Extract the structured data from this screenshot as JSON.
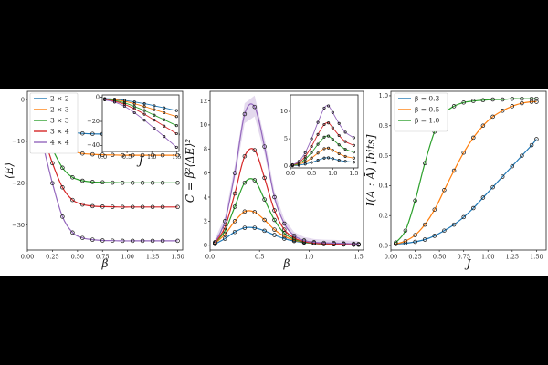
{
  "colors": {
    "blue": "#1f77b4",
    "orange": "#ff7f0e",
    "green": "#2ca02c",
    "red": "#d62728",
    "purple": "#9467bd"
  },
  "chart_data": [
    {
      "type": "line",
      "id": "energy",
      "xlabel": "β",
      "ylabel": "⟨E⟩",
      "xlim": [
        0,
        1.55
      ],
      "ylim": [
        -36,
        2
      ],
      "xticks": [
        "0.00",
        "0.25",
        "0.50",
        "0.75",
        "1.00",
        "1.25",
        "1.50"
      ],
      "yticks": [
        "0",
        "−10",
        "−20",
        "−30"
      ],
      "legend": {
        "position": "top-left",
        "entries": [
          "2 × 2",
          "2 × 3",
          "3 × 3",
          "3 × 4",
          "4 × 4"
        ]
      },
      "series": [
        {
          "name": "2 × 2",
          "color": "blue",
          "x": [
            0.05,
            0.15,
            0.25,
            0.35,
            0.45,
            0.55,
            0.65,
            0.75,
            0.85,
            0.95,
            1.05,
            1.15,
            1.25,
            1.35,
            1.5
          ],
          "y": [
            -1,
            -3.2,
            -5.4,
            -7,
            -7.8,
            -8.1,
            -8.2,
            -8.25,
            -8.27,
            -8.3,
            -8.3,
            -8.3,
            -8.3,
            -8.3,
            -8.3
          ]
        },
        {
          "name": "2 × 3",
          "color": "orange",
          "x": [
            0.05,
            0.15,
            0.25,
            0.35,
            0.45,
            0.55,
            0.65,
            0.75,
            0.85,
            0.95,
            1.05,
            1.15,
            1.25,
            1.35,
            1.5
          ],
          "y": [
            -1.3,
            -4.5,
            -8,
            -10.8,
            -12.3,
            -12.9,
            -13.1,
            -13.2,
            -13.25,
            -13.3,
            -13.3,
            -13.3,
            -13.3,
            -13.3,
            -13.3
          ]
        },
        {
          "name": "3 × 3",
          "color": "green",
          "x": [
            0.05,
            0.15,
            0.25,
            0.35,
            0.45,
            0.55,
            0.65,
            0.75,
            0.85,
            0.95,
            1.05,
            1.15,
            1.25,
            1.35,
            1.5
          ],
          "y": [
            -1.8,
            -6.5,
            -11.8,
            -16.3,
            -18.6,
            -19.4,
            -19.7,
            -19.8,
            -19.85,
            -19.9,
            -19.9,
            -19.9,
            -19.9,
            -19.9,
            -19.9
          ]
        },
        {
          "name": "3 × 4",
          "color": "red",
          "x": [
            0.05,
            0.15,
            0.25,
            0.35,
            0.45,
            0.55,
            0.65,
            0.75,
            0.85,
            0.95,
            1.05,
            1.15,
            1.25,
            1.35,
            1.5
          ],
          "y": [
            -2.2,
            -8,
            -15.2,
            -21,
            -24,
            -25.1,
            -25.5,
            -25.6,
            -25.65,
            -25.7,
            -25.7,
            -25.7,
            -25.7,
            -25.7,
            -25.7
          ]
        },
        {
          "name": "4 × 4",
          "color": "purple",
          "x": [
            0.05,
            0.15,
            0.25,
            0.35,
            0.45,
            0.55,
            0.65,
            0.75,
            0.85,
            0.95,
            1.05,
            1.15,
            1.25,
            1.35,
            1.5
          ],
          "y": [
            -2.8,
            -10.5,
            -20,
            -28,
            -31.8,
            -33.1,
            -33.5,
            -33.7,
            -33.75,
            -33.8,
            -33.8,
            -33.8,
            -33.8,
            -33.8,
            -33.8
          ]
        }
      ],
      "inset": {
        "xlabel": "J",
        "xlim": [
          0,
          1.55
        ],
        "ylim": [
          -45,
          2
        ],
        "xticks": [
          "0.0",
          "0.5",
          "1.0",
          "1.5"
        ],
        "yticks": [
          "0",
          "−20",
          "−40"
        ],
        "series": [
          {
            "color": "blue",
            "x": [
              0.05,
              0.25,
              0.45,
              0.65,
              0.85,
              1.05,
              1.25,
              1.5
            ],
            "y": [
              -1,
              -1.5,
              -2.5,
              -3.8,
              -5.3,
              -7,
              -8.8,
              -11
            ]
          },
          {
            "color": "orange",
            "x": [
              0.05,
              0.25,
              0.45,
              0.65,
              0.85,
              1.05,
              1.25,
              1.5
            ],
            "y": [
              -1.2,
              -2,
              -3.3,
              -5.3,
              -7.6,
              -10.2,
              -12.8,
              -16
            ]
          },
          {
            "color": "green",
            "x": [
              0.05,
              0.25,
              0.45,
              0.65,
              0.85,
              1.05,
              1.25,
              1.5
            ],
            "y": [
              -1.5,
              -2.6,
              -4.6,
              -7.6,
              -11,
              -14.8,
              -18.6,
              -23.5
            ]
          },
          {
            "color": "red",
            "x": [
              0.05,
              0.25,
              0.45,
              0.65,
              0.85,
              1.05,
              1.25,
              1.5
            ],
            "y": [
              -1.8,
              -3.2,
              -5.8,
              -9.6,
              -14,
              -18.9,
              -23.9,
              -30.2
            ]
          },
          {
            "color": "purple",
            "x": [
              0.05,
              0.25,
              0.45,
              0.65,
              0.85,
              1.05,
              1.25,
              1.5
            ],
            "y": [
              -2.2,
              -4,
              -7.5,
              -12.8,
              -19,
              -25.8,
              -32.6,
              -41.5
            ]
          }
        ]
      }
    },
    {
      "type": "line",
      "id": "heat-capacity",
      "xlabel": "β",
      "ylabel": "C = β²⟨ΔE⟩²",
      "xlim": [
        0,
        1.55
      ],
      "ylim": [
        -0.4,
        12.8
      ],
      "xticks": [
        "0.0",
        "0.5",
        "1.0",
        "1.5"
      ],
      "yticks": [
        "0",
        "2",
        "4",
        "6",
        "8",
        "10",
        "12"
      ],
      "series": [
        {
          "color": "blue",
          "x": [
            0.05,
            0.15,
            0.25,
            0.35,
            0.45,
            0.55,
            0.65,
            0.75,
            0.85,
            0.95,
            1.05,
            1.15,
            1.25,
            1.35,
            1.45,
            1.5
          ],
          "y": [
            0.1,
            0.55,
            1.1,
            1.45,
            1.45,
            1.2,
            0.85,
            0.55,
            0.35,
            0.22,
            0.15,
            0.1,
            0.08,
            0.06,
            0.05,
            0.05
          ]
        },
        {
          "color": "orange",
          "x": [
            0.05,
            0.15,
            0.25,
            0.35,
            0.45,
            0.55,
            0.65,
            0.75,
            0.85,
            0.95,
            1.05,
            1.15,
            1.25,
            1.35,
            1.45,
            1.5
          ],
          "y": [
            0.15,
            0.9,
            2,
            2.8,
            2.75,
            2.1,
            1.3,
            0.75,
            0.42,
            0.25,
            0.15,
            0.1,
            0.08,
            0.06,
            0.05,
            0.05
          ]
        },
        {
          "color": "green",
          "x": [
            0.05,
            0.15,
            0.25,
            0.35,
            0.45,
            0.55,
            0.65,
            0.75,
            0.85,
            0.95,
            1.05,
            1.15,
            1.25,
            1.35,
            1.45,
            1.5
          ],
          "y": [
            0.2,
            1.2,
            3.2,
            5.2,
            5.4,
            3.8,
            2.1,
            1,
            0.5,
            0.25,
            0.15,
            0.1,
            0.08,
            0.06,
            0.05,
            0.05
          ]
        },
        {
          "color": "red",
          "x": [
            0.05,
            0.15,
            0.25,
            0.35,
            0.45,
            0.55,
            0.65,
            0.75,
            0.85,
            0.95,
            1.05,
            1.15,
            1.25,
            1.35,
            1.45,
            1.5
          ],
          "y": [
            0.2,
            1.5,
            4.3,
            7.4,
            7.9,
            5.6,
            2.9,
            1.3,
            0.6,
            0.3,
            0.18,
            0.12,
            0.1,
            0.08,
            0.06,
            0.05
          ]
        },
        {
          "color": "purple",
          "x": [
            0.05,
            0.15,
            0.25,
            0.35,
            0.45,
            0.55,
            0.65,
            0.75,
            0.85,
            0.95,
            1.05,
            1.15,
            1.25,
            1.35,
            1.45,
            1.5
          ],
          "y": [
            0.25,
            2,
            6,
            10.9,
            11.5,
            8.2,
            4,
            1.8,
            0.8,
            0.4,
            0.25,
            0.2,
            0.18,
            0.15,
            0.12,
            0.1
          ]
        }
      ],
      "inset": {
        "xlim": [
          0,
          1.6
        ],
        "ylim": [
          -0.3,
          13
        ],
        "xticks": [
          "0.0",
          "0.5",
          "1.0",
          "1.5"
        ],
        "yticks": [
          "0",
          "5",
          "10"
        ],
        "series": [
          {
            "color": "blue",
            "x": [
              0.05,
              0.2,
              0.35,
              0.5,
              0.65,
              0.8,
              0.9,
              1.0,
              1.15,
              1.3,
              1.5
            ],
            "y": [
              0.1,
              0.2,
              0.4,
              0.7,
              1.1,
              1.5,
              1.55,
              1.4,
              1.1,
              0.9,
              0.75
            ]
          },
          {
            "color": "orange",
            "x": [
              0.05,
              0.2,
              0.35,
              0.5,
              0.65,
              0.8,
              0.9,
              1.0,
              1.15,
              1.3,
              1.5
            ],
            "y": [
              0.15,
              0.35,
              0.8,
              1.5,
              2.4,
              3.2,
              3.3,
              2.9,
              2.3,
              1.8,
              1.5
            ]
          },
          {
            "color": "green",
            "x": [
              0.05,
              0.2,
              0.35,
              0.5,
              0.65,
              0.8,
              0.9,
              1.0,
              1.15,
              1.3,
              1.5
            ],
            "y": [
              0.2,
              0.5,
              1.3,
              2.5,
              4,
              5.3,
              5.5,
              4.9,
              3.9,
              3.1,
              2.6
            ]
          },
          {
            "color": "red",
            "x": [
              0.05,
              0.2,
              0.35,
              0.5,
              0.65,
              0.8,
              0.9,
              1.0,
              1.15,
              1.3,
              1.5
            ],
            "y": [
              0.25,
              0.7,
              1.8,
              3.6,
              5.8,
              7.6,
              7.9,
              7,
              5.6,
              4.5,
              3.8
            ]
          },
          {
            "color": "purple",
            "x": [
              0.05,
              0.2,
              0.35,
              0.5,
              0.65,
              0.8,
              0.9,
              1.0,
              1.15,
              1.3,
              1.5
            ],
            "y": [
              0.3,
              0.9,
              2.5,
              5,
              8,
              10.6,
              11,
              9.8,
              7.8,
              6.2,
              5.2
            ]
          }
        ]
      }
    },
    {
      "type": "line",
      "id": "mutual-information",
      "xlabel": "J",
      "ylabel": "I(A : Ā) [bits]",
      "xlim": [
        0,
        1.6
      ],
      "ylim": [
        -0.03,
        1.03
      ],
      "xticks": [
        "0.00",
        "0.25",
        "0.50",
        "0.75",
        "1.00",
        "1.25",
        "1.50"
      ],
      "yticks": [
        "0.0",
        "0.2",
        "0.4",
        "0.6",
        "0.8",
        "1.0"
      ],
      "legend": {
        "position": "top-left",
        "entries": [
          "β = 0.3",
          "β = 0.5",
          "β = 1.0"
        ]
      },
      "series": [
        {
          "name": "β = 0.3",
          "color": "blue",
          "x": [
            0.05,
            0.15,
            0.25,
            0.35,
            0.45,
            0.55,
            0.65,
            0.75,
            0.85,
            0.95,
            1.05,
            1.15,
            1.25,
            1.35,
            1.45,
            1.5
          ],
          "y": [
            0.01,
            0.015,
            0.025,
            0.04,
            0.065,
            0.1,
            0.14,
            0.19,
            0.25,
            0.32,
            0.39,
            0.46,
            0.53,
            0.6,
            0.67,
            0.71
          ]
        },
        {
          "name": "β = 0.5",
          "color": "orange",
          "x": [
            0.05,
            0.15,
            0.25,
            0.35,
            0.45,
            0.55,
            0.65,
            0.75,
            0.85,
            0.95,
            1.05,
            1.15,
            1.25,
            1.35,
            1.45,
            1.5
          ],
          "y": [
            0.01,
            0.03,
            0.07,
            0.14,
            0.24,
            0.37,
            0.5,
            0.62,
            0.72,
            0.8,
            0.86,
            0.9,
            0.93,
            0.95,
            0.96,
            0.96
          ]
        },
        {
          "name": "β = 1.0",
          "color": "green",
          "x": [
            0.05,
            0.15,
            0.25,
            0.35,
            0.45,
            0.55,
            0.65,
            0.75,
            0.85,
            0.95,
            1.05,
            1.15,
            1.25,
            1.35,
            1.45,
            1.5
          ],
          "y": [
            0.02,
            0.1,
            0.3,
            0.55,
            0.76,
            0.88,
            0.93,
            0.955,
            0.965,
            0.97,
            0.975,
            0.975,
            0.98,
            0.98,
            0.98,
            0.98
          ]
        }
      ]
    }
  ]
}
